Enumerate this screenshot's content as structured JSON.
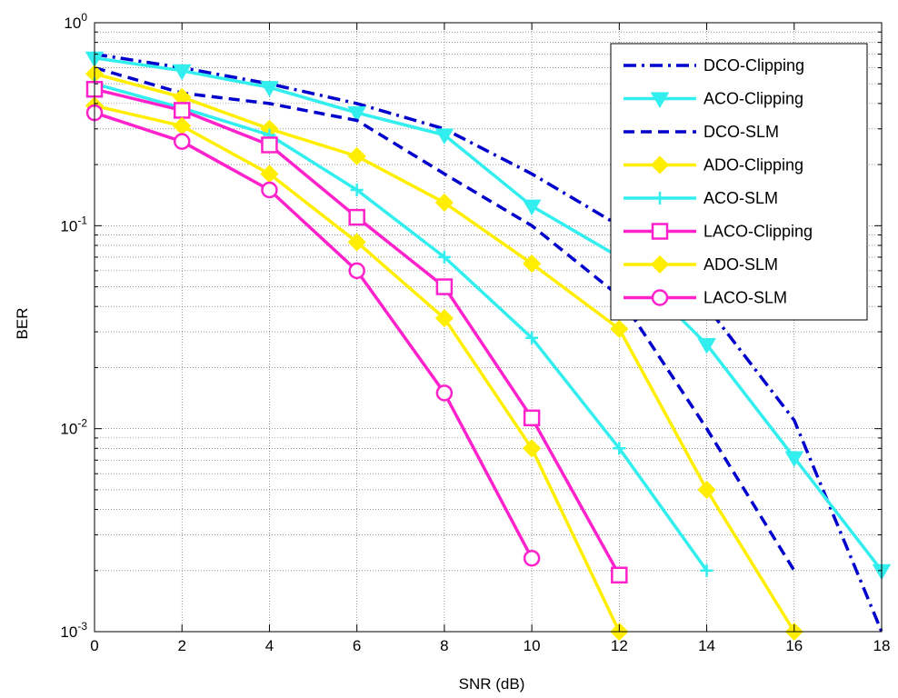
{
  "chart_data": {
    "type": "line",
    "xlabel": "SNR (dB)",
    "ylabel": "BER",
    "xlim": [
      0,
      18
    ],
    "ylim": [
      0.001,
      1
    ],
    "yscale": "log",
    "grid": true,
    "legend_position": "top-right",
    "x_ticks": [
      "0",
      "2",
      "4",
      "6",
      "8",
      "10",
      "12",
      "14",
      "16",
      "18"
    ],
    "y_ticks": [
      {
        "base": "10",
        "exp": "0"
      },
      {
        "base": "10",
        "exp": "-1"
      },
      {
        "base": "10",
        "exp": "-2"
      },
      {
        "base": "10",
        "exp": "-3"
      }
    ],
    "series": [
      {
        "name": "DCO-Clipping",
        "color": "#0000cc",
        "dash": "dashdot",
        "marker": "none",
        "x": [
          0,
          2,
          4,
          6,
          8,
          10,
          12,
          14,
          16,
          18
        ],
        "y": [
          0.7,
          0.6,
          0.5,
          0.4,
          0.3,
          0.18,
          0.1,
          0.04,
          0.011,
          0.001
        ]
      },
      {
        "name": "ACO-Clipping",
        "color": "#33eeee",
        "dash": "solid",
        "marker": "triangle-down",
        "x": [
          0,
          2,
          4,
          6,
          8,
          10,
          12,
          14,
          16,
          18
        ],
        "y": [
          0.67,
          0.58,
          0.48,
          0.36,
          0.28,
          0.125,
          0.07,
          0.026,
          0.0072,
          0.002
        ]
      },
      {
        "name": "DCO-SLM",
        "color": "#0000cc",
        "dash": "dashed",
        "marker": "none",
        "x": [
          0,
          2,
          4,
          6,
          8,
          10,
          12,
          14,
          16
        ],
        "y": [
          0.6,
          0.45,
          0.4,
          0.33,
          0.18,
          0.1,
          0.045,
          0.01,
          0.002
        ]
      },
      {
        "name": "ADO-Clipping",
        "color": "#ffee00",
        "dash": "solid",
        "marker": "diamond",
        "x": [
          0,
          2,
          4,
          6,
          8,
          10,
          12,
          14,
          16
        ],
        "y": [
          0.56,
          0.43,
          0.3,
          0.22,
          0.13,
          0.065,
          0.031,
          0.005,
          0.001
        ]
      },
      {
        "name": "ACO-SLM",
        "color": "#33eeee",
        "dash": "solid",
        "marker": "plus",
        "x": [
          0,
          2,
          4,
          6,
          8,
          10,
          12,
          14
        ],
        "y": [
          0.5,
          0.38,
          0.28,
          0.15,
          0.07,
          0.028,
          0.008,
          0.002
        ]
      },
      {
        "name": "LACO-Clipping",
        "color": "#ff22cc",
        "dash": "solid",
        "marker": "square",
        "x": [
          0,
          2,
          4,
          6,
          8,
          10,
          12
        ],
        "y": [
          0.47,
          0.37,
          0.25,
          0.11,
          0.05,
          0.0113,
          0.0019
        ]
      },
      {
        "name": "ADO-SLM",
        "color": "#ffee00",
        "dash": "solid",
        "marker": "diamond",
        "x": [
          0,
          2,
          4,
          6,
          8,
          10,
          12
        ],
        "y": [
          0.39,
          0.31,
          0.18,
          0.083,
          0.035,
          0.008,
          0.001
        ]
      },
      {
        "name": "LACO-SLM",
        "color": "#ff22cc",
        "dash": "solid",
        "marker": "circle",
        "x": [
          0,
          2,
          4,
          6,
          8,
          10
        ],
        "y": [
          0.36,
          0.26,
          0.15,
          0.06,
          0.015,
          0.0023
        ]
      }
    ]
  }
}
